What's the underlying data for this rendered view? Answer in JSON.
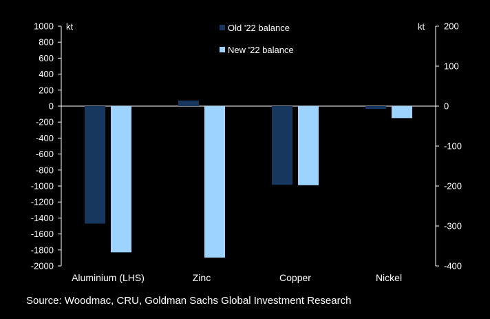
{
  "chart_data": {
    "type": "bar",
    "categories": [
      "Aluminium (LHS)",
      "Zinc",
      "Copper",
      "Nickel"
    ],
    "series": [
      {
        "name": "Old '22 balance",
        "color": "#17375E",
        "values": [
          -1470,
          14,
          -197,
          -7
        ]
      },
      {
        "name": "New '22 balance",
        "color": "#9DD3FF",
        "values": [
          -1830,
          -379,
          -198,
          -30
        ]
      }
    ],
    "axis_assignment": [
      "left",
      "right",
      "right",
      "right"
    ],
    "left_axis": {
      "unit": "kt",
      "min": -2000,
      "max": 1000,
      "step": 200,
      "ticks": [
        "1000",
        "800",
        "600",
        "400",
        "200",
        "0",
        "-200",
        "-400",
        "-600",
        "-800",
        "-1000",
        "-1200",
        "-1400",
        "-1600",
        "-1800",
        "-2000"
      ]
    },
    "right_axis": {
      "unit": "kt",
      "min": -400,
      "max": 200,
      "step": 100,
      "ticks": [
        "200",
        "100",
        "0",
        "-100",
        "-200",
        "-300",
        "-400"
      ]
    },
    "legend_position": "top",
    "grid": false
  },
  "source": "Source: Woodmac, CRU, Goldman Sachs Global Investment Research"
}
